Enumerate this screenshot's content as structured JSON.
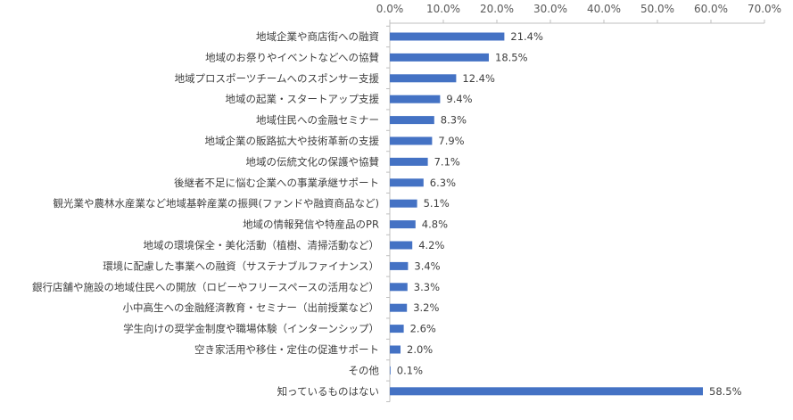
{
  "chart_data": {
    "type": "bar",
    "orientation": "horizontal",
    "categories": [
      "地域企業や商店街への融資",
      "地域のお祭りやイベントなどへの協賛",
      "地域プロスポーツチームへのスポンサー支援",
      "地域の起業・スタートアップ支援",
      "地域住民への金融セミナー",
      "地域企業の販路拡大や技術革新の支援",
      "地域の伝統文化の保護や協賛",
      "後継者不足に悩む企業への事業承継サポート",
      "観光業や農林水産業など地域基幹産業の振興(ファンドや融資商品など)",
      "地域の情報発信や特産品のPR",
      "地域の環境保全・美化活動（植樹、清掃活動など）",
      "環境に配慮した事業への融資（サステナブルファイナンス）",
      "銀行店舗や施設の地域住民への開放（ロビーやフリースペースの活用など）",
      "小中高生への金融経済教育・セミナー（出前授業など）",
      "学生向けの奨学金制度や職場体験（インターンシップ）",
      "空き家活用や移住・定住の促進サポート",
      "その他",
      "知っているものはない"
    ],
    "values": [
      21.4,
      18.5,
      12.4,
      9.4,
      8.3,
      7.9,
      7.1,
      6.3,
      5.1,
      4.8,
      4.2,
      3.4,
      3.3,
      3.2,
      2.6,
      2.0,
      0.1,
      58.5
    ],
    "data_labels": [
      "21.4%",
      "18.5%",
      "12.4%",
      "9.4%",
      "8.3%",
      "7.9%",
      "7.1%",
      "6.3%",
      "5.1%",
      "4.8%",
      "4.2%",
      "3.4%",
      "3.3%",
      "3.2%",
      "2.6%",
      "2.0%",
      "0.1%",
      "58.5%"
    ],
    "xlim": [
      0,
      70
    ],
    "ticks": [
      0,
      10,
      20,
      30,
      40,
      50,
      60,
      70
    ],
    "tick_labels": [
      "0.0%",
      "10.0%",
      "20.0%",
      "30.0%",
      "40.0%",
      "50.0%",
      "60.0%",
      "70.0%"
    ],
    "axis_position": "top",
    "grid": false,
    "bar_color": "#4472C4",
    "axis_color": "#BFBFBF",
    "title": "",
    "xlabel": "",
    "ylabel": ""
  }
}
